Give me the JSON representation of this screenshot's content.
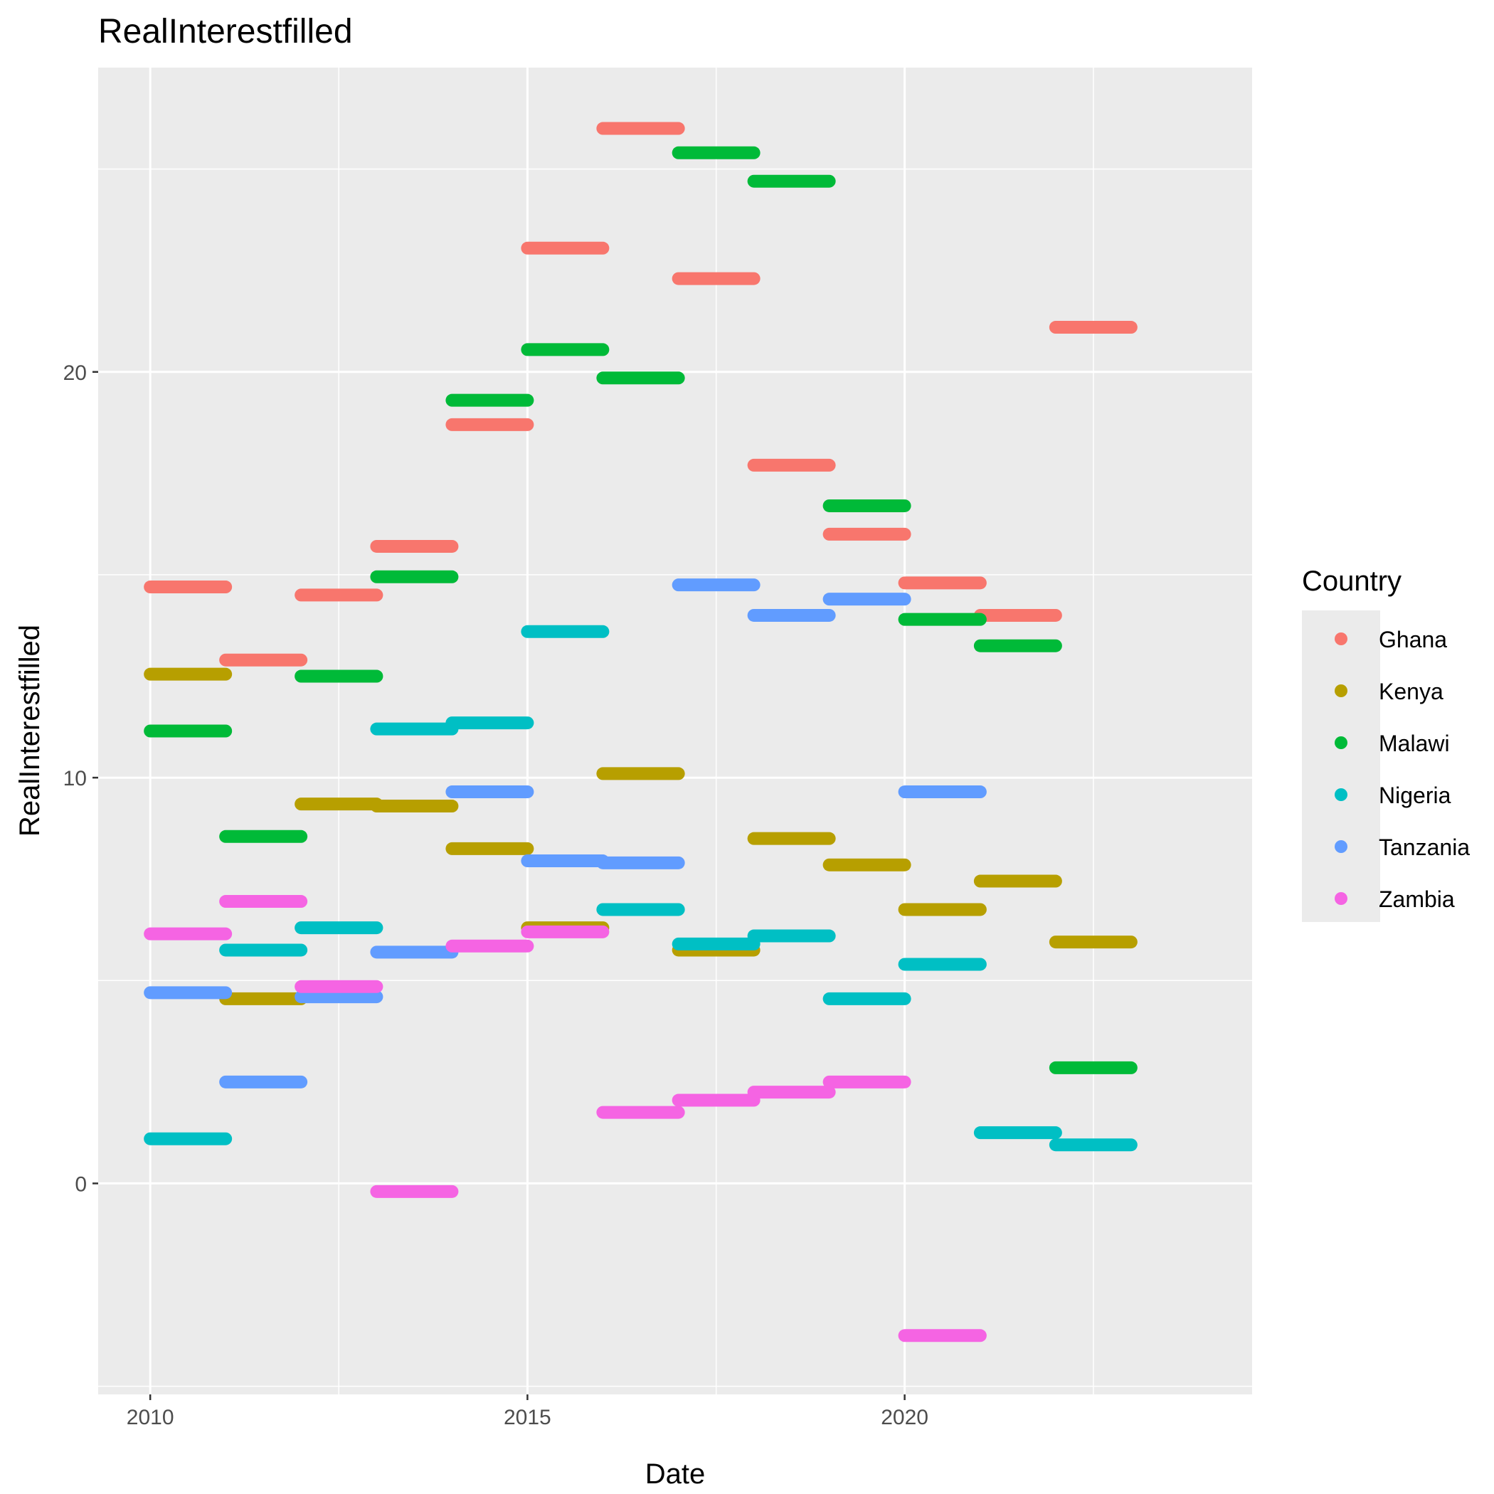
{
  "chart_data": {
    "type": "scatter",
    "title": "RealInterestfilled",
    "xlabel": "Date",
    "ylabel": "RealInterestfilled",
    "x_ticks": [
      "2010",
      "2015",
      "2020"
    ],
    "y_ticks": [
      "0",
      "10",
      "20"
    ],
    "xlim": [
      "2009-04-24",
      "2024-08-09"
    ],
    "ylim": [
      -5.2,
      27.5
    ],
    "grid": true,
    "legend": {
      "title": "Country",
      "position": "right"
    },
    "colors": {
      "Ghana": "#F8766D",
      "Kenya": "#B79F00",
      "Malawi": "#00BA38",
      "Nigeria": "#00BFC4",
      "Tanzania": "#619CFF",
      "Zambia": "#F564E3"
    },
    "series": [
      {
        "name": "Ghana",
        "values": [
          {
            "start": "2010-01-01",
            "end": "2011-01-01",
            "y": 14.7
          },
          {
            "start": "2011-01-01",
            "end": "2012-01-01",
            "y": 12.9
          },
          {
            "start": "2012-01-01",
            "end": "2013-01-01",
            "y": 14.5
          },
          {
            "start": "2013-01-01",
            "end": "2014-01-01",
            "y": 15.7
          },
          {
            "start": "2014-01-01",
            "end": "2015-01-01",
            "y": 18.7
          },
          {
            "start": "2015-01-01",
            "end": "2016-01-01",
            "y": 23.05
          },
          {
            "start": "2016-01-01",
            "end": "2017-01-01",
            "y": 26.0
          },
          {
            "start": "2017-01-01",
            "end": "2018-01-01",
            "y": 22.3
          },
          {
            "start": "2018-01-01",
            "end": "2019-01-01",
            "y": 17.7
          },
          {
            "start": "2019-01-01",
            "end": "2020-01-01",
            "y": 16.0
          },
          {
            "start": "2020-01-01",
            "end": "2021-01-01",
            "y": 14.8
          },
          {
            "start": "2021-01-01",
            "end": "2022-01-01",
            "y": 14.0
          },
          {
            "start": "2022-01-01",
            "end": "2023-01-01",
            "y": 21.1
          }
        ]
      },
      {
        "name": "Kenya",
        "values": [
          {
            "start": "2010-01-01",
            "end": "2011-01-01",
            "y": 12.55
          },
          {
            "start": "2011-01-01",
            "end": "2012-01-01",
            "y": 4.55
          },
          {
            "start": "2012-01-01",
            "end": "2013-01-01",
            "y": 9.35
          },
          {
            "start": "2013-01-01",
            "end": "2014-01-01",
            "y": 9.3
          },
          {
            "start": "2014-01-01",
            "end": "2015-01-01",
            "y": 8.25
          },
          {
            "start": "2015-01-01",
            "end": "2016-01-01",
            "y": 6.3
          },
          {
            "start": "2016-01-01",
            "end": "2017-01-01",
            "y": 10.1
          },
          {
            "start": "2017-01-01",
            "end": "2018-01-01",
            "y": 5.75
          },
          {
            "start": "2018-01-01",
            "end": "2019-01-01",
            "y": 8.5
          },
          {
            "start": "2019-01-01",
            "end": "2020-01-01",
            "y": 7.85
          },
          {
            "start": "2020-01-01",
            "end": "2021-01-01",
            "y": 6.75
          },
          {
            "start": "2021-01-01",
            "end": "2022-01-01",
            "y": 7.45
          },
          {
            "start": "2022-01-01",
            "end": "2023-01-01",
            "y": 5.95
          }
        ]
      },
      {
        "name": "Malawi",
        "values": [
          {
            "start": "2010-01-01",
            "end": "2011-01-01",
            "y": 11.15
          },
          {
            "start": "2011-01-01",
            "end": "2012-01-01",
            "y": 8.55
          },
          {
            "start": "2012-01-01",
            "end": "2013-01-01",
            "y": 12.5
          },
          {
            "start": "2013-01-01",
            "end": "2014-01-01",
            "y": 14.95
          },
          {
            "start": "2014-01-01",
            "end": "2015-01-01",
            "y": 19.3
          },
          {
            "start": "2015-01-01",
            "end": "2016-01-01",
            "y": 20.55
          },
          {
            "start": "2016-01-01",
            "end": "2017-01-01",
            "y": 19.85
          },
          {
            "start": "2017-01-01",
            "end": "2018-01-01",
            "y": 25.4
          },
          {
            "start": "2018-01-01",
            "end": "2019-01-01",
            "y": 24.7
          },
          {
            "start": "2019-01-01",
            "end": "2020-01-01",
            "y": 16.7
          },
          {
            "start": "2020-01-01",
            "end": "2021-01-01",
            "y": 13.9
          },
          {
            "start": "2021-01-01",
            "end": "2022-01-01",
            "y": 13.25
          },
          {
            "start": "2022-01-01",
            "end": "2023-01-01",
            "y": 2.85
          }
        ]
      },
      {
        "name": "Nigeria",
        "values": [
          {
            "start": "2010-01-01",
            "end": "2011-01-01",
            "y": 1.1
          },
          {
            "start": "2011-01-01",
            "end": "2012-01-01",
            "y": 5.75
          },
          {
            "start": "2012-01-01",
            "end": "2013-01-01",
            "y": 6.3
          },
          {
            "start": "2013-01-01",
            "end": "2014-01-01",
            "y": 11.2
          },
          {
            "start": "2014-01-01",
            "end": "2015-01-01",
            "y": 11.35
          },
          {
            "start": "2015-01-01",
            "end": "2016-01-01",
            "y": 13.6
          },
          {
            "start": "2016-01-01",
            "end": "2017-01-01",
            "y": 6.75
          },
          {
            "start": "2017-01-01",
            "end": "2018-01-01",
            "y": 5.9
          },
          {
            "start": "2018-01-01",
            "end": "2019-01-01",
            "y": 6.1
          },
          {
            "start": "2019-01-01",
            "end": "2020-01-01",
            "y": 4.55
          },
          {
            "start": "2020-01-01",
            "end": "2021-01-01",
            "y": 5.4
          },
          {
            "start": "2021-01-01",
            "end": "2022-01-01",
            "y": 1.25
          },
          {
            "start": "2022-01-01",
            "end": "2023-01-01",
            "y": 0.95
          }
        ]
      },
      {
        "name": "Tanzania",
        "values": [
          {
            "start": "2010-01-01",
            "end": "2011-01-01",
            "y": 4.7
          },
          {
            "start": "2011-01-01",
            "end": "2012-01-01",
            "y": 2.5
          },
          {
            "start": "2012-01-01",
            "end": "2013-01-01",
            "y": 4.6
          },
          {
            "start": "2013-01-01",
            "end": "2014-01-01",
            "y": 5.7
          },
          {
            "start": "2014-01-01",
            "end": "2015-01-01",
            "y": 9.65
          },
          {
            "start": "2015-01-01",
            "end": "2016-01-01",
            "y": 7.95
          },
          {
            "start": "2016-01-01",
            "end": "2017-01-01",
            "y": 7.9
          },
          {
            "start": "2017-01-01",
            "end": "2018-01-01",
            "y": 14.75
          },
          {
            "start": "2018-01-01",
            "end": "2019-01-01",
            "y": 14.0
          },
          {
            "start": "2019-01-01",
            "end": "2020-01-01",
            "y": 14.4
          },
          {
            "start": "2020-01-01",
            "end": "2021-01-01",
            "y": 9.65
          }
        ]
      },
      {
        "name": "Zambia",
        "values": [
          {
            "start": "2010-01-01",
            "end": "2011-01-01",
            "y": 6.15
          },
          {
            "start": "2011-01-01",
            "end": "2012-01-01",
            "y": 6.95
          },
          {
            "start": "2012-01-01",
            "end": "2013-01-01",
            "y": 4.85
          },
          {
            "start": "2013-01-01",
            "end": "2014-01-01",
            "y": -0.2
          },
          {
            "start": "2014-01-01",
            "end": "2015-01-01",
            "y": 5.85
          },
          {
            "start": "2015-01-01",
            "end": "2016-01-01",
            "y": 6.2
          },
          {
            "start": "2016-01-01",
            "end": "2017-01-01",
            "y": 1.75
          },
          {
            "start": "2017-01-01",
            "end": "2018-01-01",
            "y": 2.05
          },
          {
            "start": "2018-01-01",
            "end": "2019-01-01",
            "y": 2.25
          },
          {
            "start": "2019-01-01",
            "end": "2020-01-01",
            "y": 2.5
          },
          {
            "start": "2020-01-01",
            "end": "2021-01-01",
            "y": -3.75
          }
        ]
      }
    ]
  }
}
